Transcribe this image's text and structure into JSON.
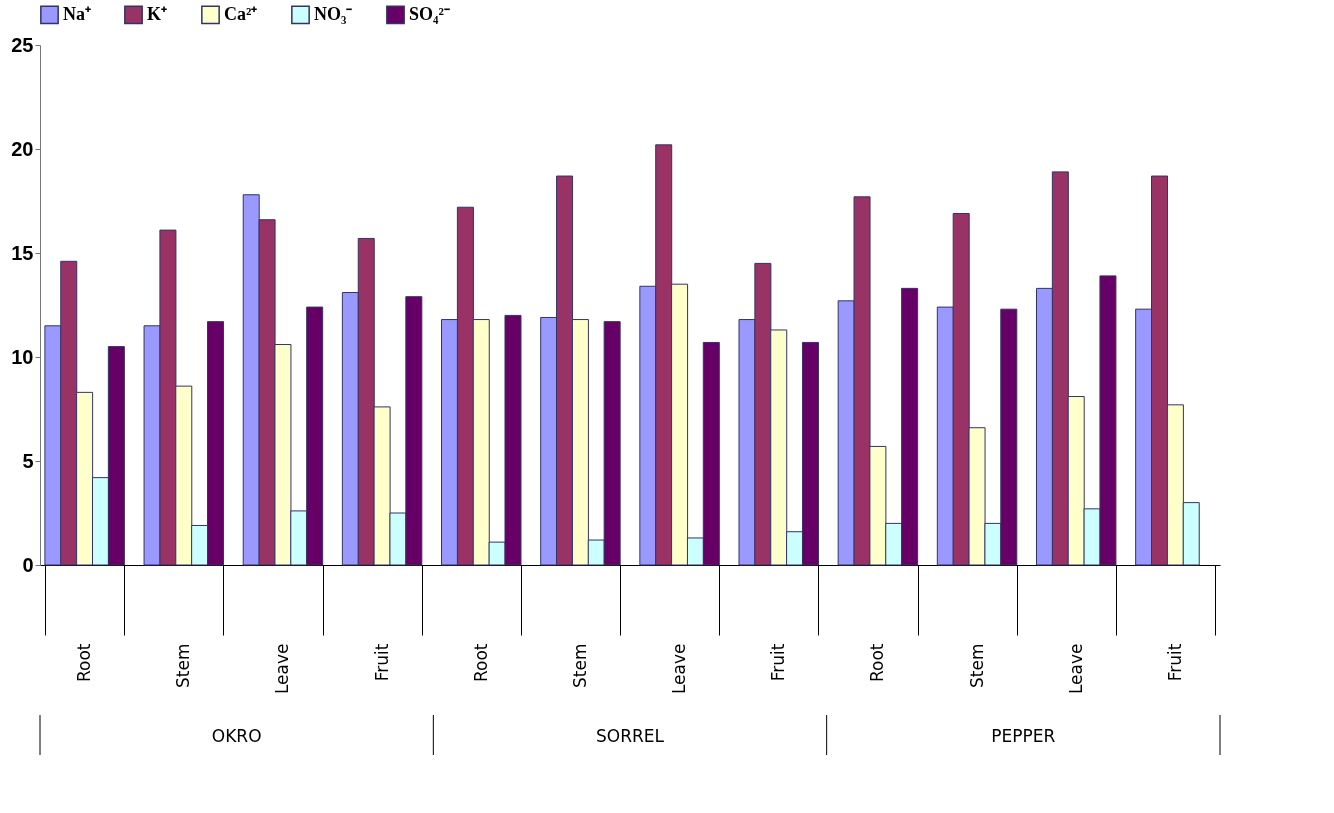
{
  "chart_data": {
    "type": "bar",
    "categories": [
      "Root",
      "Stem",
      "Leave",
      "Fruit",
      "Root",
      "Stem",
      "Leave",
      "Fruit",
      "Root",
      "Stem",
      "Leave",
      "Fruit"
    ],
    "series": [
      {
        "name": "Na⁺",
        "color": "#9999ff",
        "values": [
          11.5,
          11.5,
          17.8,
          13.1,
          11.8,
          11.9,
          13.4,
          11.8,
          12.7,
          12.4,
          13.3,
          12.3
        ]
      },
      {
        "name": "K⁺",
        "color": "#993366",
        "values": [
          14.6,
          16.1,
          16.6,
          15.7,
          17.2,
          18.7,
          20.2,
          14.5,
          17.7,
          16.9,
          18.9,
          18.7
        ]
      },
      {
        "name": "Ca²⁺",
        "color": "#ffffcc",
        "values": [
          8.3,
          8.6,
          10.6,
          7.6,
          11.8,
          11.8,
          13.5,
          11.3,
          5.7,
          6.6,
          8.1,
          7.7
        ]
      },
      {
        "name": "NO₃⁻",
        "color": "#ccffff",
        "values": [
          4.2,
          1.9,
          2.6,
          2.5,
          1.1,
          1.2,
          1.3,
          1.6,
          2.0,
          2.0,
          2.7,
          3.0
        ]
      },
      {
        "name": "SO₄²⁻",
        "color": "#660066",
        "values": [
          10.5,
          11.7,
          12.4,
          12.9,
          12.0,
          11.7,
          10.7,
          10.7,
          13.3,
          12.3,
          13.9,
          null
        ]
      }
    ],
    "annotations": [
      "OKRO",
      "SORREL",
      "PEPPER"
    ],
    "ylim": [
      0,
      25
    ],
    "yticks": [
      0,
      5,
      10,
      15,
      20,
      25
    ],
    "grid": false,
    "legend": "top"
  }
}
